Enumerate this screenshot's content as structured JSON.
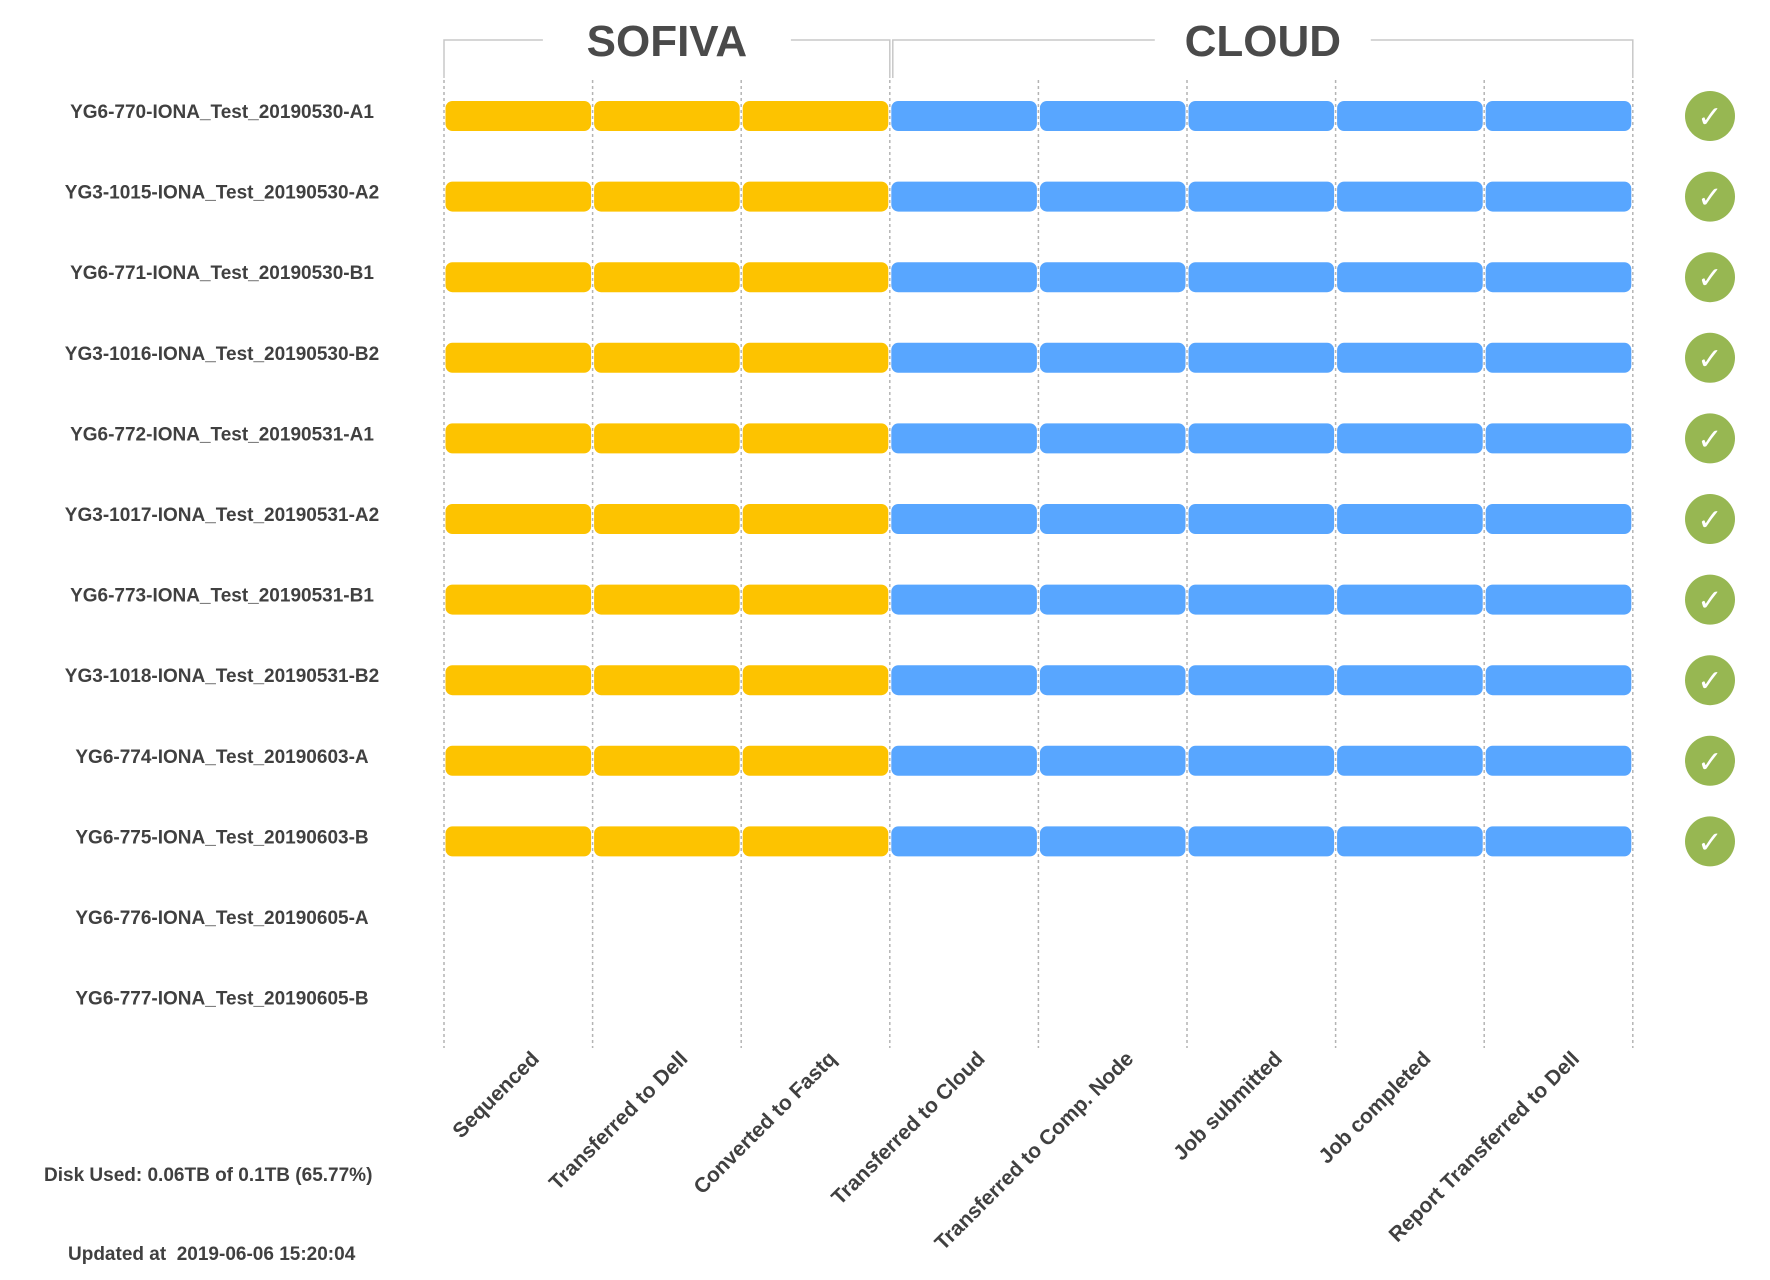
{
  "chart_data": {
    "type": "pipeline-status",
    "groups": [
      {
        "name": "SOFIVA",
        "stages": [
          0,
          1,
          2
        ],
        "color": "#FDC300"
      },
      {
        "name": "CLOUD",
        "stages": [
          3,
          4,
          5,
          6,
          7
        ],
        "color": "#58A6FF"
      }
    ],
    "stages": [
      "Sequenced",
      "Transferred to Dell",
      "Converted to Fastq",
      "Transferred to Cloud",
      "Transferred to Comp. Node",
      "Job submitted",
      "Job completed",
      "Report Transferred to Dell"
    ],
    "samples": [
      {
        "name": "YG6-770-IONA_Test_20190530-A1",
        "completed_stages": 8,
        "done": true
      },
      {
        "name": "YG3-1015-IONA_Test_20190530-A2",
        "completed_stages": 8,
        "done": true
      },
      {
        "name": "YG6-771-IONA_Test_20190530-B1",
        "completed_stages": 8,
        "done": true
      },
      {
        "name": "YG3-1016-IONA_Test_20190530-B2",
        "completed_stages": 8,
        "done": true
      },
      {
        "name": "YG6-772-IONA_Test_20190531-A1",
        "completed_stages": 8,
        "done": true
      },
      {
        "name": "YG3-1017-IONA_Test_20190531-A2",
        "completed_stages": 8,
        "done": true
      },
      {
        "name": "YG6-773-IONA_Test_20190531-B1",
        "completed_stages": 8,
        "done": true
      },
      {
        "name": "YG3-1018-IONA_Test_20190531-B2",
        "completed_stages": 8,
        "done": true
      },
      {
        "name": "YG6-774-IONA_Test_20190603-A",
        "completed_stages": 8,
        "done": true
      },
      {
        "name": "YG6-775-IONA_Test_20190603-B",
        "completed_stages": 8,
        "done": true
      },
      {
        "name": "YG6-776-IONA_Test_20190605-A",
        "completed_stages": 0,
        "done": false
      },
      {
        "name": "YG6-777-IONA_Test_20190605-B",
        "completed_stages": 0,
        "done": false
      }
    ],
    "done_icon": "check-icon",
    "done_color": "#97B752",
    "gridline_color": "#b4b4b4"
  },
  "footer": {
    "disk_used": "Disk Used: 0.06TB of 0.1TB (65.77%)",
    "updated_at": "Updated at  2019-06-06 15:20:04"
  }
}
